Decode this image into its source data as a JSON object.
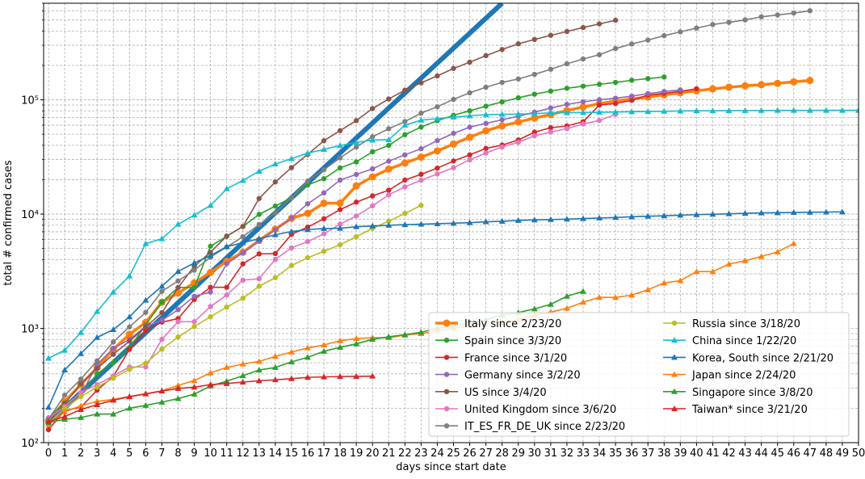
{
  "chart_data": {
    "type": "line",
    "title": "",
    "xlabel": "days since start date",
    "ylabel": "total # confirmed cases",
    "xlim": [
      -0.3,
      50
    ],
    "ylim": [
      100,
      700000
    ],
    "yscale": "log",
    "grid": "major and minor, dashed",
    "legend_position": "lower-right",
    "legend_columns": 2,
    "x_ticks": [
      0,
      1,
      2,
      3,
      4,
      5,
      6,
      7,
      8,
      9,
      10,
      11,
      12,
      13,
      14,
      15,
      16,
      17,
      18,
      19,
      20,
      21,
      22,
      23,
      24,
      25,
      26,
      27,
      28,
      29,
      30,
      31,
      32,
      33,
      34,
      35,
      36,
      37,
      38,
      39,
      40,
      41,
      42,
      43,
      44,
      45,
      46,
      47,
      48,
      49,
      50
    ],
    "y_tick_labels": [
      {
        "value": 100,
        "label": "10²"
      },
      {
        "value": 1000,
        "label": "10³"
      },
      {
        "value": 10000,
        "label": "10⁴"
      },
      {
        "value": 100000,
        "label": "10⁵"
      }
    ],
    "trend_line": {
      "color": "#1f77b4",
      "from": [
        0,
        150
      ],
      "to": [
        28,
        700000
      ]
    },
    "series": [
      {
        "name": "Italy since 2/23/20",
        "color": "#ff7f0e",
        "marker": "circle",
        "bold": true,
        "values": [
          155,
          229,
          322,
          453,
          655,
          888,
          1128,
          1694,
          2036,
          2502,
          3089,
          3858,
          4636,
          5883,
          7375,
          9172,
          10149,
          12462,
          12462,
          17660,
          21157,
          24747,
          27980,
          31506,
          35713,
          41035,
          47021,
          53578,
          59138,
          63927,
          69176,
          74386,
          80589,
          86498,
          92472,
          97689,
          101739,
          105792,
          110574,
          115242,
          119827,
          124632,
          128948,
          132547,
          135586,
          139422,
          143626,
          147577
        ]
      },
      {
        "name": "Spain since 3/3/20",
        "color": "#2ca02c",
        "marker": "circle",
        "values": [
          165,
          222,
          259,
          400,
          500,
          673,
          1073,
          1695,
          2277,
          2277,
          5232,
          6391,
          7798,
          9942,
          11748,
          13910,
          17963,
          20410,
          25374,
          28603,
          35136,
          39885,
          49515,
          57786,
          65719,
          73235,
          80110,
          87956,
          95923,
          104118,
          112065,
          119199,
          126168,
          131646,
          136675,
          141942,
          148220,
          153222,
          158273
        ]
      },
      {
        "name": "France since 3/1/20",
        "color": "#d62728",
        "marker": "circle",
        "values": [
          130,
          191,
          204,
          288,
          380,
          656,
          957,
          1134,
          1217,
          1792,
          2289,
          2289,
          3672,
          4480,
          4513,
          6650,
          7699,
          9105,
          10947,
          12726,
          14431,
          16176,
          19856,
          22304,
          25233,
          29155,
          32964,
          37575,
          40174,
          44550,
          52128,
          56989,
          59105,
          64338,
          89953,
          92839,
          98963,
          110065,
          113959,
          118781,
          124869
        ]
      },
      {
        "name": "Germany since 3/2/20",
        "color": "#9467bd",
        "marker": "circle",
        "values": [
          159,
          196,
          262,
          482,
          670,
          799,
          1040,
          1176,
          1457,
          1908,
          2078,
          3675,
          4585,
          5795,
          7272,
          9257,
          12327,
          15320,
          19848,
          22213,
          24873,
          29056,
          32986,
          37323,
          43938,
          50871,
          57695,
          62095,
          66885,
          71808,
          77872,
          84794,
          91159,
          96092,
          100123,
          103374,
          107663,
          113296,
          118181,
          122171
        ]
      },
      {
        "name": "US since 3/4/20",
        "color": "#8c564b",
        "marker": "circle",
        "values": [
          152,
          220,
          327,
          445,
          593,
          773,
          1027,
          1373,
          2277,
          3499,
          4630,
          6421,
          7786,
          13680,
          19101,
          25493,
          33276,
          43847,
          53740,
          65778,
          83836,
          101657,
          121478,
          140886,
          161807,
          188172,
          213372,
          243453,
          275586,
          308850,
          337072,
          366667,
          396223,
          429052,
          461437,
          496535
        ]
      },
      {
        "name": "United Kingdom since 3/6/20",
        "color": "#e377c2",
        "marker": "circle",
        "values": [
          164,
          207,
          274,
          322,
          384,
          459,
          459,
          802,
          1144,
          1145,
          1551,
          1960,
          2642,
          2716,
          4014,
          5067,
          5745,
          6726,
          8164,
          9640,
          11812,
          14745,
          17312,
          19780,
          22453,
          25481,
          29865,
          34173,
          38689,
          42477,
          48436,
          52279,
          55949,
          61474,
          65872,
          74605
        ]
      },
      {
        "name": "IT_ES_FR_DE_UK since 2/23/20",
        "color": "#7f7f7f",
        "marker": "circle",
        "values": [
          160,
          260,
          360,
          520,
          760,
          1030,
          1380,
          2110,
          2600,
          3230,
          4200,
          5150,
          6340,
          8100,
          10250,
          13870,
          19430,
          24470,
          31040,
          38680,
          47470,
          55820,
          64520,
          76370,
          86950,
          100850,
          115100,
          128830,
          141940,
          152170,
          166980,
          185090,
          206550,
          227680,
          248130,
          280900,
          307950,
          333060,
          363880,
          393510,
          423990,
          455900,
          476400,
          500160,
          532790,
          552550,
          574360,
          601400
        ]
      },
      {
        "name": "Russia since 3/18/20",
        "color": "#bcbd22",
        "marker": "circle",
        "values": [
          147,
          199,
          253,
          306,
          367,
          438,
          495,
          658,
          840,
          1036,
          1264,
          1534,
          1836,
          2337,
          2777,
          3548,
          4149,
          4731,
          5389,
          6343,
          7497,
          8672,
          10131,
          11917
        ]
      },
      {
        "name": "China since 1/22/20",
        "color": "#17becf",
        "marker": "triangle",
        "values": [
          548,
          643,
          920,
          1406,
          2075,
          2877,
          5509,
          6087,
          8141,
          9802,
          11891,
          16630,
          19716,
          23707,
          27440,
          30587,
          34110,
          36814,
          39829,
          42354,
          44386,
          44759,
          59895,
          66358,
          68413,
          70513,
          72434,
          74211,
          74619,
          75077,
          75550,
          77001,
          77022,
          77241,
          77754,
          78166,
          78600,
          78928,
          79356,
          79932,
          80136,
          80261,
          80386,
          80537,
          80690,
          80770,
          80823,
          80860,
          80887,
          80921,
          80932
        ]
      },
      {
        "name": "Korea, South since 2/21/20",
        "color": "#1f77b4",
        "marker": "triangle",
        "values": [
          204,
          433,
          602,
          833,
          977,
          1261,
          1766,
          2337,
          3150,
          3736,
          4335,
          5186,
          5621,
          6088,
          6593,
          7041,
          7314,
          7478,
          7513,
          7755,
          7869,
          7979,
          8086,
          8162,
          8236,
          8320,
          8413,
          8565,
          8652,
          8799,
          8897,
          8961,
          9037,
          9137,
          9241,
          9332,
          9478,
          9583,
          9661,
          9786,
          9887,
          9976,
          10062,
          10156,
          10237,
          10284,
          10331,
          10384,
          10423,
          10450
        ]
      },
      {
        "name": "Japan since 2/24/20",
        "color": "#ff7f0e",
        "marker": "triangle",
        "values": [
          144,
          186,
          210,
          230,
          239,
          254,
          268,
          284,
          317,
          349,
          408,
          455,
          488,
          514,
          568,
          620,
          675,
          716,
          780,
          814,
          829,
          829,
          873,
          900,
          950,
          1007,
          1054,
          1101,
          1128,
          1193,
          1307,
          1387,
          1499,
          1693,
          1866,
          1866,
          1953,
          2178,
          2495,
          2617,
          3139,
          3139,
          3654,
          3906,
          4257,
          4667,
          5530
        ]
      },
      {
        "name": "Singapore since 3/8/20",
        "color": "#2ca02c",
        "marker": "triangle",
        "values": [
          150,
          160,
          166,
          178,
          178,
          200,
          212,
          226,
          243,
          266,
          313,
          345,
          385,
          432,
          455,
          509,
          558,
          631,
          683,
          732,
          802,
          844,
          879,
          926,
          1000,
          1049,
          1114,
          1189,
          1309,
          1375,
          1481,
          1623,
          1910,
          2108
        ]
      },
      {
        "name": "Taiwan* since 3/21/20",
        "color": "#d62728",
        "marker": "triangle",
        "values": [
          153,
          169,
          195,
          215,
          235,
          252,
          267,
          283,
          298,
          306,
          322,
          329,
          339,
          348,
          355,
          363,
          373,
          376,
          379,
          380,
          382
        ]
      }
    ]
  }
}
